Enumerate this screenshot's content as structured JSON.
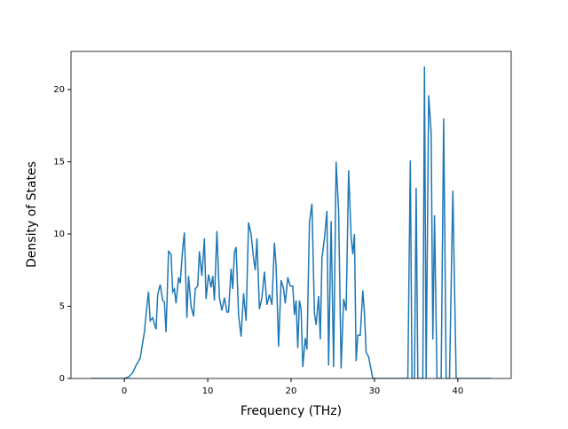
{
  "chart_data": {
    "type": "line",
    "xlabel": "Frequency (THz)",
    "ylabel": "Density of States",
    "color": "#1f77b4",
    "x": [
      -4,
      0,
      0.5,
      1,
      1.4,
      1.9,
      2.4,
      2.7,
      2.9,
      3.1,
      3.4,
      3.8,
      4,
      4.3,
      4.6,
      4.8,
      5,
      5.3,
      5.6,
      5.8,
      6,
      6.2,
      6.5,
      6.7,
      7,
      7.2,
      7.5,
      7.7,
      8,
      8.3,
      8.5,
      8.8,
      9,
      9.3,
      9.6,
      9.8,
      10.1,
      10.4,
      10.6,
      10.8,
      11.1,
      11.4,
      11.7,
      12,
      12.3,
      12.5,
      12.8,
      13,
      13.2,
      13.4,
      13.7,
      14,
      14.3,
      14.6,
      14.9,
      15.2,
      15.5,
      15.7,
      15.9,
      16.2,
      16.5,
      16.8,
      17.1,
      17.4,
      17.7,
      18,
      18.2,
      18.5,
      18.8,
      19.1,
      19.3,
      19.6,
      19.9,
      20.2,
      20.4,
      20.6,
      20.8,
      21,
      21.2,
      21.4,
      21.7,
      21.9,
      22.2,
      22.5,
      22.8,
      23,
      23.3,
      23.5,
      23.7,
      24,
      24.3,
      24.5,
      24.8,
      25.1,
      25.4,
      25.7,
      26,
      26.3,
      26.6,
      26.9,
      27.2,
      27.4,
      27.6,
      27.8,
      28,
      28.3,
      28.6,
      28.8,
      29,
      29.3,
      29.8,
      34,
      34.3,
      34.5,
      34.8,
      35,
      35.2,
      35.8,
      36,
      36.2,
      36.5,
      36.8,
      37,
      37.2,
      37.5,
      38,
      38.3,
      38.6,
      39,
      39.4,
      39.8,
      44
    ],
    "values": [
      0,
      0,
      0.1,
      0.4,
      0.9,
      1.4,
      3.2,
      5,
      6,
      4,
      4.2,
      3.4,
      5.8,
      6.5,
      5.4,
      5.3,
      3.2,
      8.8,
      8.6,
      6,
      6.2,
      5.2,
      7,
      6.6,
      9,
      10.1,
      4.2,
      7.1,
      5,
      4.3,
      6.2,
      6.4,
      8.8,
      7.1,
      9.7,
      5.5,
      7.2,
      6.3,
      7.1,
      5.4,
      10.2,
      5.6,
      4.7,
      5.6,
      4.6,
      4.6,
      7.6,
      6.2,
      8.7,
      9.1,
      4.4,
      2.9,
      5.9,
      4,
      10.8,
      10,
      8.3,
      7.5,
      9.7,
      4.8,
      5.6,
      7.4,
      5.1,
      5.8,
      5.1,
      9.4,
      7.8,
      2.2,
      6.8,
      6.2,
      5.2,
      7,
      6.4,
      6.4,
      4.4,
      5.4,
      2.1,
      5.4,
      4.8,
      0.8,
      2.8,
      2,
      10.8,
      12.1,
      4.5,
      3.7,
      5.7,
      2.7,
      8.3,
      9.7,
      11.6,
      0.9,
      10.9,
      0.8,
      15,
      11.6,
      0.7,
      5.5,
      4.7,
      14.4,
      9.8,
      8.6,
      10,
      1.2,
      3,
      3,
      6.1,
      4.5,
      1.8,
      1.5,
      0,
      0,
      15.1,
      0,
      0,
      13.2,
      0,
      0,
      21.6,
      0,
      19.6,
      17,
      2.7,
      11.3,
      0,
      0,
      18,
      0,
      0,
      13,
      0,
      0
    ],
    "xlim": [
      -6.4,
      46.4
    ],
    "xticks": [
      0,
      10,
      20,
      30,
      40
    ],
    "ylim": [
      0,
      22.64
    ],
    "yticks": [
      0,
      5,
      10,
      15,
      20
    ]
  }
}
